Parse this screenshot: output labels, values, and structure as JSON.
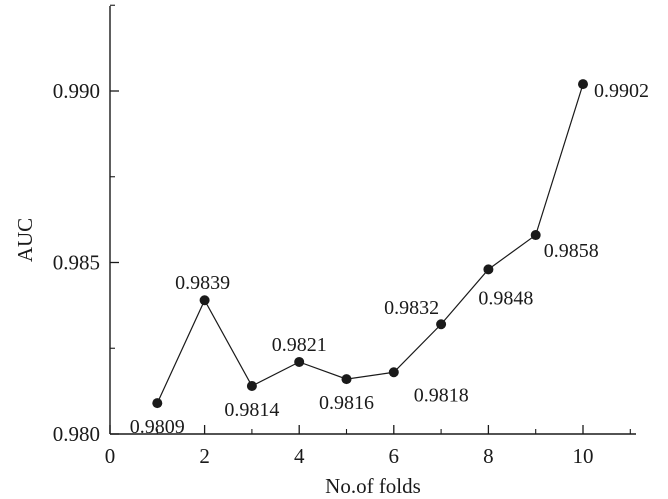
{
  "chart_data": {
    "type": "line",
    "title": "",
    "xlabel": "No.of folds",
    "ylabel": "AUC",
    "xlim": [
      0,
      11
    ],
    "ylim": [
      0.98,
      0.9925
    ],
    "x_ticks": [
      0,
      2,
      4,
      6,
      8,
      10
    ],
    "x_tick_labels": [
      "0",
      "2",
      "4",
      "6",
      "8",
      "10"
    ],
    "y_ticks": [
      0.98,
      0.985,
      0.99
    ],
    "y_tick_labels": [
      "0.980",
      "0.985",
      "0.990"
    ],
    "grid": false,
    "legend": "none",
    "series": [
      {
        "x": [
          1,
          2,
          3,
          4,
          5,
          6,
          7,
          8,
          9,
          10
        ],
        "values": [
          0.9809,
          0.9839,
          0.9814,
          0.9821,
          0.9816,
          0.9818,
          0.9832,
          0.9848,
          0.9858,
          0.9902
        ],
        "data_labels": [
          "0.9809",
          "0.9839",
          "0.9814",
          "0.9821",
          "0.9816",
          "0.9818",
          "0.9832",
          "0.9848",
          "0.9858",
          "0.9902"
        ],
        "color": "#1a1a1a",
        "marker": "filled-circle"
      }
    ]
  }
}
